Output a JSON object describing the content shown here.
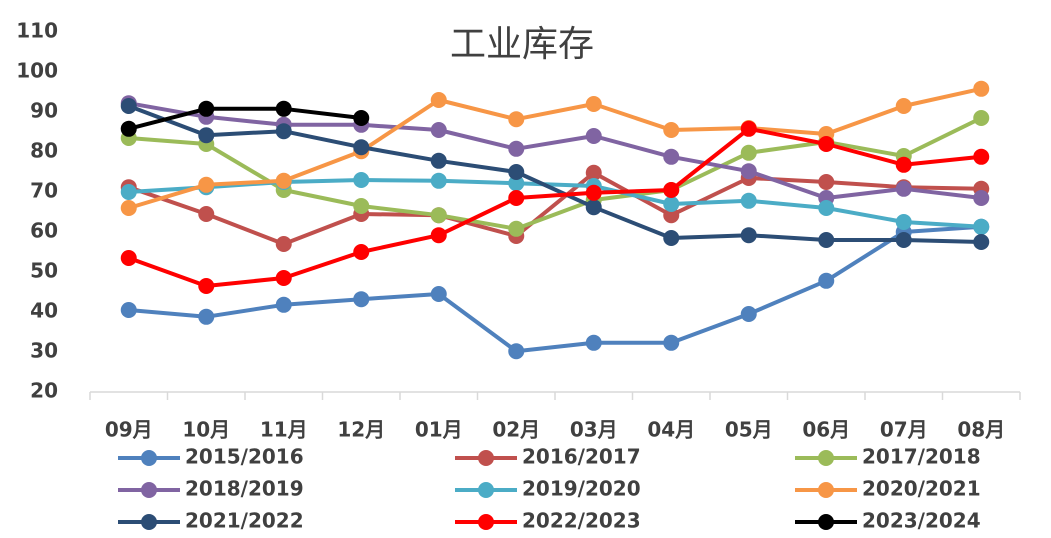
{
  "chart_data": {
    "type": "line",
    "title": "工业库存",
    "categories": [
      "09月",
      "10月",
      "11月",
      "12月",
      "01月",
      "02月",
      "03月",
      "04月",
      "05月",
      "06月",
      "07月",
      "08月"
    ],
    "ylim": [
      20,
      110
    ],
    "yticks": [
      20,
      30,
      40,
      50,
      60,
      70,
      80,
      90,
      100,
      110
    ],
    "grid": false,
    "series": [
      {
        "name": "2015/2016",
        "color": "#4f81bd",
        "values": [
          40.5,
          38.8,
          41.8,
          43.2,
          44.5,
          30.2,
          32.3,
          32.3,
          39.5,
          47.8,
          60,
          61.3
        ]
      },
      {
        "name": "2016/2017",
        "color": "#c0504d",
        "values": [
          71.2,
          64.5,
          57,
          64.5,
          64.2,
          59,
          74.8,
          64.2,
          73.5,
          72.5,
          71.2,
          70.8
        ]
      },
      {
        "name": "2017/2018",
        "color": "#9bbb59",
        "values": [
          83.5,
          82,
          70.5,
          66.5,
          64.2,
          60.8,
          68,
          70.5,
          79.8,
          82.5,
          79,
          88.5
        ]
      },
      {
        "name": "2018/2019",
        "color": "#8064a2",
        "values": [
          92.2,
          88.8,
          86.8,
          86.8,
          85.5,
          80.8,
          84,
          78.8,
          75.2,
          68.5,
          70.8,
          68.5
        ]
      },
      {
        "name": "2019/2020",
        "color": "#4bacc6",
        "values": [
          70,
          71.2,
          72.5,
          73,
          72.8,
          72.2,
          71.5,
          67,
          67.8,
          66,
          62.5,
          61.3
        ]
      },
      {
        "name": "2020/2021",
        "color": "#f79646",
        "values": [
          66,
          71.8,
          72.8,
          80.2,
          93,
          88.2,
          92,
          85.5,
          86,
          84.5,
          91.5,
          95.8
        ]
      },
      {
        "name": "2021/2022",
        "color": "#2c4d75",
        "values": [
          91.5,
          84.2,
          85.2,
          81.2,
          77.8,
          75,
          66.2,
          58.5,
          59.2,
          58,
          58,
          57.5
        ]
      },
      {
        "name": "2022/2023",
        "color": "#ff0000",
        "values": [
          53.5,
          46.5,
          48.5,
          55,
          59.2,
          68.5,
          69.8,
          70.5,
          85.8,
          82,
          76.8,
          78.8
        ]
      },
      {
        "name": "2023/2024",
        "color": "#000000",
        "values": [
          85.8,
          90.8,
          90.8,
          88.5,
          null,
          null,
          null,
          null,
          null,
          null,
          null,
          null
        ]
      }
    ]
  }
}
